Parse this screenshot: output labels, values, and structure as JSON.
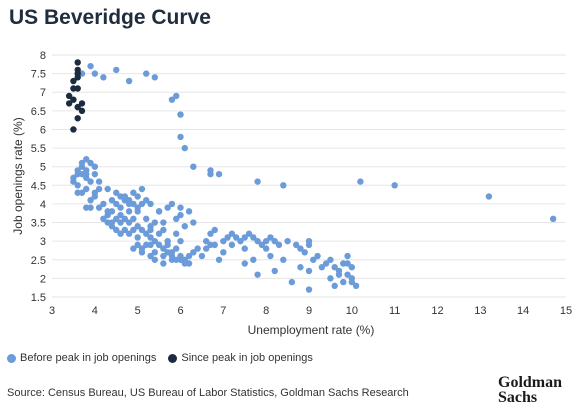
{
  "header": {
    "title": "US Beveridge Curve"
  },
  "footer": {
    "source": "Source: Census Bureau, US Bureau of Labor Statistics, Goldman Sachs Research",
    "logo_line1": "Goldman",
    "logo_line2": "Sachs"
  },
  "colors": {
    "before": "#6b9bd8",
    "since": "#1c2b3f",
    "grid": "#e6e6e6"
  },
  "chart_data": {
    "type": "scatter",
    "title": "US Beveridge Curve",
    "xlabel": "Unemployment rate (%)",
    "ylabel": "Job openings rate (%)",
    "xlim": [
      3,
      15
    ],
    "ylim": [
      1.5,
      8
    ],
    "xticks": [
      3,
      4,
      5,
      6,
      7,
      8,
      9,
      10,
      11,
      12,
      13,
      14,
      15
    ],
    "yticks": [
      1.5,
      2,
      2.5,
      3,
      3.5,
      4,
      4.5,
      5,
      5.5,
      6,
      6.5,
      7,
      7.5,
      8
    ],
    "grid": "horizontal",
    "legend_position": "bottom-left",
    "series": [
      {
        "name": "Before peak in job openings",
        "points": [
          [
            3.9,
            7.7
          ],
          [
            3.7,
            7.5
          ],
          [
            4.0,
            7.5
          ],
          [
            4.2,
            7.4
          ],
          [
            4.5,
            7.6
          ],
          [
            4.8,
            7.3
          ],
          [
            5.2,
            7.5
          ],
          [
            5.4,
            7.4
          ],
          [
            5.8,
            6.8
          ],
          [
            5.9,
            6.9
          ],
          [
            6.0,
            6.4
          ],
          [
            6.0,
            5.8
          ],
          [
            6.1,
            5.5
          ],
          [
            6.3,
            5.0
          ],
          [
            6.7,
            4.9
          ],
          [
            6.7,
            4.8
          ],
          [
            6.9,
            4.8
          ],
          [
            7.8,
            4.6
          ],
          [
            8.4,
            4.5
          ],
          [
            10.2,
            4.6
          ],
          [
            11.0,
            4.5
          ],
          [
            13.2,
            4.2
          ],
          [
            14.7,
            3.6
          ],
          [
            3.6,
            4.8
          ],
          [
            3.7,
            4.8
          ],
          [
            3.8,
            4.9
          ],
          [
            3.7,
            5.1
          ],
          [
            3.8,
            5.2
          ],
          [
            3.9,
            5.1
          ],
          [
            4.0,
            5.0
          ],
          [
            4.0,
            4.8
          ],
          [
            4.1,
            4.6
          ],
          [
            3.9,
            4.6
          ],
          [
            3.8,
            4.7
          ],
          [
            3.6,
            4.9
          ],
          [
            3.7,
            5.0
          ],
          [
            3.8,
            4.8
          ],
          [
            3.5,
            4.7
          ],
          [
            3.5,
            4.6
          ],
          [
            3.6,
            4.5
          ],
          [
            3.6,
            4.3
          ],
          [
            3.7,
            4.3
          ],
          [
            3.8,
            4.4
          ],
          [
            4.0,
            4.3
          ],
          [
            4.1,
            4.4
          ],
          [
            4.3,
            4.4
          ],
          [
            4.5,
            4.3
          ],
          [
            4.6,
            4.2
          ],
          [
            4.7,
            4.2
          ],
          [
            4.8,
            4.1
          ],
          [
            4.9,
            4.3
          ],
          [
            5.0,
            4.2
          ],
          [
            5.1,
            4.4
          ],
          [
            5.2,
            4.1
          ],
          [
            5.3,
            4.0
          ],
          [
            5.1,
            4.0
          ],
          [
            5.0,
            3.9
          ],
          [
            4.9,
            4.0
          ],
          [
            4.8,
            4.0
          ],
          [
            4.7,
            4.1
          ],
          [
            4.6,
            3.9
          ],
          [
            4.5,
            4.0
          ],
          [
            4.4,
            3.8
          ],
          [
            4.3,
            3.7
          ],
          [
            4.2,
            3.6
          ],
          [
            4.3,
            3.5
          ],
          [
            4.4,
            3.4
          ],
          [
            4.5,
            3.6
          ],
          [
            4.6,
            3.7
          ],
          [
            4.7,
            3.6
          ],
          [
            4.8,
            3.5
          ],
          [
            4.9,
            3.6
          ],
          [
            5.0,
            3.4
          ],
          [
            5.1,
            3.3
          ],
          [
            5.2,
            3.2
          ],
          [
            5.3,
            3.1
          ],
          [
            5.4,
            3.0
          ],
          [
            5.5,
            2.9
          ],
          [
            5.6,
            2.8
          ],
          [
            5.7,
            2.7
          ],
          [
            5.8,
            2.6
          ],
          [
            5.9,
            2.5
          ],
          [
            6.0,
            2.5
          ],
          [
            6.1,
            2.4
          ],
          [
            6.2,
            2.6
          ],
          [
            6.3,
            2.7
          ],
          [
            6.5,
            2.6
          ],
          [
            6.6,
            2.8
          ],
          [
            6.8,
            2.9
          ],
          [
            7.0,
            3.0
          ],
          [
            7.1,
            3.1
          ],
          [
            7.2,
            3.2
          ],
          [
            7.3,
            3.1
          ],
          [
            7.4,
            3.0
          ],
          [
            7.5,
            3.1
          ],
          [
            7.6,
            3.2
          ],
          [
            7.7,
            3.1
          ],
          [
            7.8,
            3.0
          ],
          [
            7.9,
            2.9
          ],
          [
            8.0,
            3.0
          ],
          [
            8.1,
            3.1
          ],
          [
            8.2,
            3.0
          ],
          [
            8.3,
            2.9
          ],
          [
            8.5,
            3.0
          ],
          [
            8.7,
            2.9
          ],
          [
            8.8,
            2.8
          ],
          [
            9.0,
            2.9
          ],
          [
            9.0,
            3.0
          ],
          [
            9.2,
            2.6
          ],
          [
            9.5,
            2.5
          ],
          [
            9.6,
            2.3
          ],
          [
            9.7,
            2.2
          ],
          [
            9.8,
            2.4
          ],
          [
            9.9,
            2.6
          ],
          [
            9.9,
            2.1
          ],
          [
            10.0,
            2.0
          ],
          [
            10.0,
            2.3
          ],
          [
            10.0,
            1.9
          ],
          [
            10.1,
            1.8
          ],
          [
            9.8,
            1.9
          ],
          [
            9.6,
            1.8
          ],
          [
            9.5,
            2.0
          ],
          [
            9.1,
            2.5
          ],
          [
            9.0,
            2.2
          ],
          [
            9.0,
            1.7
          ],
          [
            8.6,
            1.9
          ],
          [
            8.2,
            2.2
          ],
          [
            7.8,
            2.1
          ],
          [
            7.5,
            2.4
          ],
          [
            6.9,
            2.5
          ],
          [
            6.4,
            2.8
          ],
          [
            6.0,
            3.0
          ],
          [
            5.7,
            3.0
          ],
          [
            5.5,
            3.2
          ],
          [
            5.3,
            3.4
          ],
          [
            5.2,
            3.6
          ],
          [
            5.5,
            3.8
          ],
          [
            5.7,
            3.9
          ],
          [
            5.8,
            4.0
          ],
          [
            6.0,
            3.7
          ],
          [
            6.2,
            3.8
          ],
          [
            6.0,
            3.9
          ],
          [
            5.9,
            3.6
          ],
          [
            5.6,
            3.5
          ],
          [
            5.4,
            3.5
          ],
          [
            5.0,
            3.8
          ],
          [
            4.8,
            3.8
          ],
          [
            4.6,
            3.5
          ],
          [
            4.5,
            3.3
          ],
          [
            4.7,
            3.3
          ],
          [
            4.9,
            3.3
          ],
          [
            5.0,
            3.1
          ],
          [
            4.8,
            3.2
          ],
          [
            4.6,
            3.2
          ],
          [
            4.4,
            3.5
          ],
          [
            4.3,
            3.8
          ],
          [
            4.1,
            3.9
          ],
          [
            4.4,
            4.1
          ],
          [
            4.2,
            4.0
          ],
          [
            4.0,
            4.2
          ],
          [
            3.9,
            4.1
          ],
          [
            3.8,
            3.9
          ],
          [
            3.9,
            3.9
          ],
          [
            5.3,
            2.9
          ],
          [
            5.1,
            2.8
          ],
          [
            5.4,
            2.7
          ],
          [
            5.6,
            2.6
          ],
          [
            5.8,
            2.7
          ],
          [
            6.0,
            2.6
          ],
          [
            5.9,
            2.8
          ],
          [
            5.7,
            2.9
          ],
          [
            5.3,
            2.6
          ],
          [
            5.5,
            3.8
          ],
          [
            6.8,
            3.3
          ],
          [
            6.7,
            3.2
          ],
          [
            6.6,
            3.0
          ],
          [
            5.1,
            2.7
          ],
          [
            5.0,
            2.9
          ],
          [
            4.9,
            2.8
          ],
          [
            5.2,
            2.9
          ],
          [
            5.4,
            2.5
          ],
          [
            6.1,
            2.5
          ],
          [
            6.2,
            2.4
          ],
          [
            5.8,
            2.5
          ],
          [
            5.6,
            2.4
          ],
          [
            7.0,
            2.7
          ],
          [
            7.2,
            2.9
          ],
          [
            7.5,
            2.8
          ],
          [
            8.0,
            2.8
          ],
          [
            8.4,
            2.5
          ],
          [
            8.8,
            2.3
          ],
          [
            9.3,
            2.3
          ],
          [
            9.4,
            2.4
          ],
          [
            9.7,
            2.1
          ],
          [
            9.9,
            2.4
          ],
          [
            8.9,
            2.7
          ],
          [
            8.1,
            2.6
          ],
          [
            7.7,
            2.5
          ],
          [
            6.7,
            2.9
          ],
          [
            5.9,
            3.2
          ],
          [
            5.6,
            3.3
          ],
          [
            5.3,
            3.3
          ],
          [
            6.1,
            3.4
          ],
          [
            6.3,
            3.5
          ]
        ]
      },
      {
        "name": "Since peak in job openings",
        "points": [
          [
            3.6,
            7.8
          ],
          [
            3.6,
            7.6
          ],
          [
            3.6,
            7.5
          ],
          [
            3.5,
            7.3
          ],
          [
            3.6,
            7.4
          ],
          [
            3.6,
            7.1
          ],
          [
            3.5,
            7.1
          ],
          [
            3.4,
            6.9
          ],
          [
            3.5,
            6.8
          ],
          [
            3.7,
            6.7
          ],
          [
            3.6,
            6.6
          ],
          [
            3.4,
            6.7
          ],
          [
            3.7,
            6.5
          ],
          [
            3.6,
            6.3
          ],
          [
            3.5,
            6.0
          ]
        ]
      }
    ]
  },
  "legend": {
    "before_label": "Before peak in job openings",
    "since_label": "Since peak in job openings"
  }
}
